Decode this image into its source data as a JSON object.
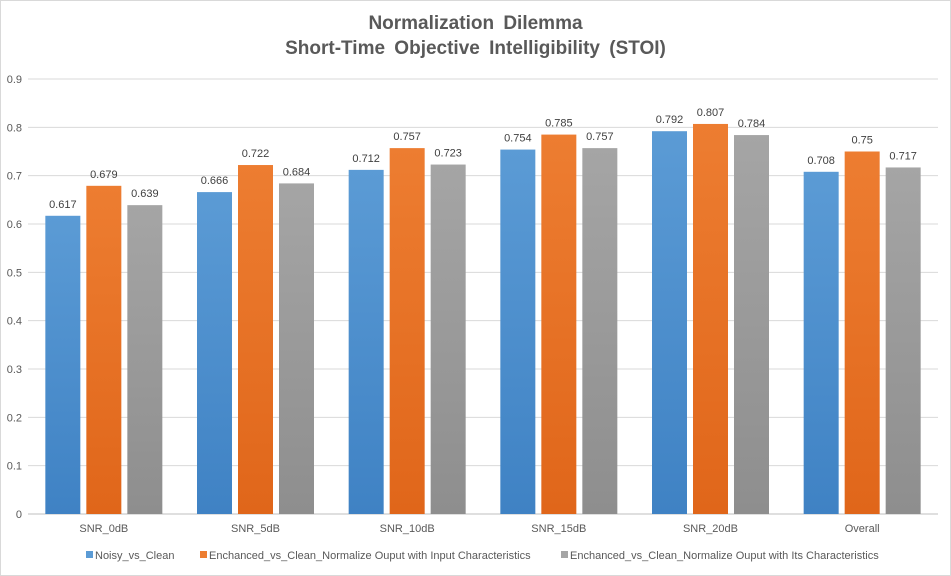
{
  "chart_data": {
    "type": "bar",
    "title": "Normalization Dilemma",
    "subtitle": "Short-Time Objective Intelligibility (STOI)",
    "categories": [
      "SNR_0dB",
      "SNR_5dB",
      "SNR_10dB",
      "SNR_15dB",
      "SNR_20dB",
      "Overall"
    ],
    "series": [
      {
        "name": "Noisy_vs_Clean",
        "color": "#5b9bd5",
        "values": [
          0.617,
          0.666,
          0.712,
          0.754,
          0.792,
          0.708
        ],
        "labels": [
          "0.617",
          "0.666",
          "0.712",
          "0.754",
          "0.792",
          "0.708"
        ]
      },
      {
        "name": "Enchanced_vs_Clean_Normalize Ouput with Input Characteristics",
        "color": "#ed7d31",
        "values": [
          0.679,
          0.722,
          0.757,
          0.785,
          0.807,
          0.75
        ],
        "labels": [
          "0.679",
          "0.722",
          "0.757",
          "0.785",
          "0.807",
          "0.75"
        ]
      },
      {
        "name": "Enchanced_vs_Clean_Normalize Ouput with Its Characteristics",
        "color": "#a5a5a5",
        "values": [
          0.639,
          0.684,
          0.723,
          0.757,
          0.784,
          0.717
        ],
        "labels": [
          "0.639",
          "0.684",
          "0.723",
          "0.757",
          "0.784",
          "0.717"
        ]
      }
    ],
    "ylim": [
      0,
      0.9
    ],
    "yticks": [
      "0",
      "0.1",
      "0.2",
      "0.3",
      "0.4",
      "0.5",
      "0.6",
      "0.7",
      "0.8",
      "0.9"
    ],
    "grid": true,
    "legend_position": "bottom"
  }
}
